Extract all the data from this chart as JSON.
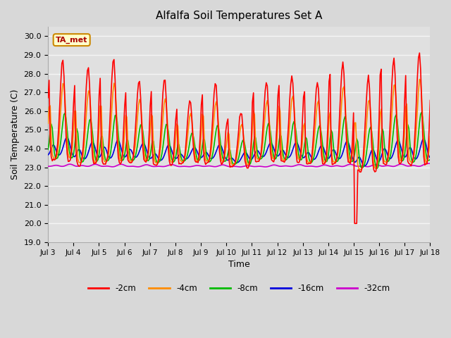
{
  "title": "Alfalfa Soil Temperatures Set A",
  "xlabel": "Time",
  "ylabel": "Soil Temperature (C)",
  "ylim": [
    19.0,
    30.5
  ],
  "yticks": [
    19.0,
    20.0,
    21.0,
    22.0,
    23.0,
    24.0,
    25.0,
    26.0,
    27.0,
    28.0,
    29.0,
    30.0
  ],
  "xtick_labels": [
    "Jul 3",
    "Jul 4",
    "Jul 5",
    "Jul 6",
    "Jul 7",
    "Jul 8",
    "Jul 9",
    "Jul 10",
    "Jul 11",
    "Jul 12",
    "Jul 13",
    "Jul 14",
    "Jul 15",
    "Jul 16",
    "Jul 17",
    "Jul 18"
  ],
  "fig_bg_color": "#d8d8d8",
  "plot_bg_color": "#e0e0e0",
  "grid_color": "#f5f5f5",
  "spine_color": "#aaaaaa",
  "colors": {
    "-2cm": "#ff0000",
    "-4cm": "#ff8c00",
    "-8cm": "#00bb00",
    "-16cm": "#0000dd",
    "-32cm": "#cc00cc"
  },
  "legend_entries": [
    "-2cm",
    "-4cm",
    "-8cm",
    "-16cm",
    "-32cm"
  ],
  "annotation_text": "TA_met",
  "annotation_color": "#aa0000",
  "annotation_bg": "#ffffcc",
  "annotation_border": "#cc8800",
  "linewidth": 1.2
}
